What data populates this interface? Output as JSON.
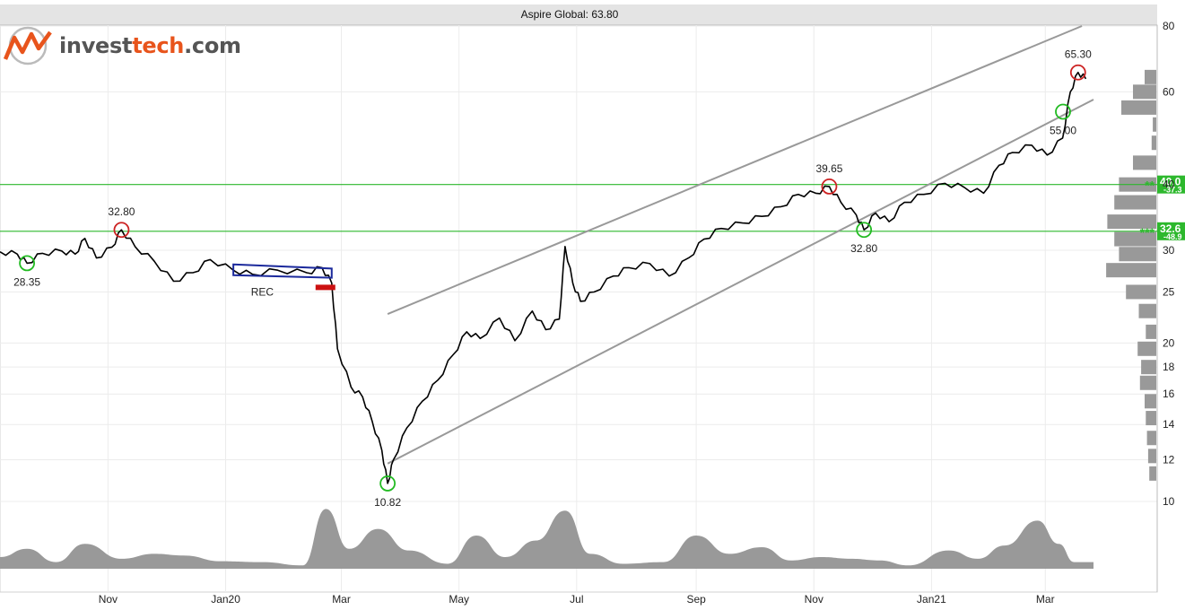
{
  "header": {
    "title": "Aspire Global: 63.80",
    "logo_text_main": "invest",
    "logo_text_accent": "tech",
    "logo_text_suffix": ".com",
    "logo_icon": "chart-zigzag-logo-icon"
  },
  "colors": {
    "price_line": "#000000",
    "trend_channel": "#999999",
    "support_resistance": "#2db82d",
    "bottom_marker": "#22bb22",
    "top_marker": "#cc2222",
    "volume": "#999999",
    "volume_profile": "#999999",
    "pattern_outline": "#1c2a9c",
    "pattern_arrow": "#cc1111",
    "title_bar": "#e4e4e4"
  },
  "chart_data": {
    "type": "line",
    "title": "Aspire Global: 63.80",
    "y_scale": "log",
    "ylim": [
      10,
      85
    ],
    "y_ticks": [
      10,
      12,
      14,
      16,
      18,
      20,
      25,
      30,
      40,
      60,
      80
    ],
    "x_range": [
      "2019-09-06",
      "2021-03-26"
    ],
    "x_ticks": [
      {
        "label": "Nov",
        "date": "2019-11-01"
      },
      {
        "label": "Jan20",
        "date": "2020-01-01"
      },
      {
        "label": "Mar",
        "date": "2020-03-01"
      },
      {
        "label": "May",
        "date": "2020-05-01"
      },
      {
        "label": "Jul",
        "date": "2020-07-01"
      },
      {
        "label": "Sep",
        "date": "2020-09-01"
      },
      {
        "label": "Nov",
        "date": "2020-11-01"
      },
      {
        "label": "Jan21",
        "date": "2021-01-01"
      },
      {
        "label": "Mar",
        "date": "2021-03-01"
      }
    ],
    "grid": true,
    "series": [
      {
        "points": [
          [
            "2019-09-06",
            29.8
          ],
          [
            "2019-09-15",
            29.5
          ],
          [
            "2019-09-20",
            28.35
          ],
          [
            "2019-09-28",
            29.6
          ],
          [
            "2019-10-08",
            29.9
          ],
          [
            "2019-10-15",
            29.5
          ],
          [
            "2019-10-20",
            31.6
          ],
          [
            "2019-10-26",
            29.0
          ],
          [
            "2019-11-03",
            30.4
          ],
          [
            "2019-11-08",
            32.8
          ],
          [
            "2019-11-15",
            30.5
          ],
          [
            "2019-11-25",
            28.6
          ],
          [
            "2019-12-05",
            26.2
          ],
          [
            "2019-12-15",
            27.2
          ],
          [
            "2019-12-24",
            28.8
          ],
          [
            "2020-01-05",
            27.5
          ],
          [
            "2020-01-15",
            27.0
          ],
          [
            "2020-01-28",
            27.5
          ],
          [
            "2020-02-12",
            27.2
          ],
          [
            "2020-02-20",
            27.8
          ],
          [
            "2020-02-25",
            26.0
          ],
          [
            "2020-02-28",
            19.5
          ],
          [
            "2020-03-06",
            16.5
          ],
          [
            "2020-03-12",
            15.8
          ],
          [
            "2020-03-17",
            14.2
          ],
          [
            "2020-03-22",
            12.5
          ],
          [
            "2020-03-25",
            10.82
          ],
          [
            "2020-03-28",
            12.0
          ],
          [
            "2020-04-04",
            13.8
          ],
          [
            "2020-04-12",
            15.5
          ],
          [
            "2020-04-20",
            17.0
          ],
          [
            "2020-04-28",
            19.0
          ],
          [
            "2020-05-05",
            21.0
          ],
          [
            "2020-05-12",
            20.4
          ],
          [
            "2020-05-22",
            22.3
          ],
          [
            "2020-05-30",
            20.2
          ],
          [
            "2020-06-08",
            23.0
          ],
          [
            "2020-06-15",
            21.2
          ],
          [
            "2020-06-22",
            22.2
          ],
          [
            "2020-06-25",
            30.5
          ],
          [
            "2020-06-29",
            26.0
          ],
          [
            "2020-07-03",
            24.0
          ],
          [
            "2020-07-10",
            25.0
          ],
          [
            "2020-07-20",
            26.8
          ],
          [
            "2020-07-28",
            27.8
          ],
          [
            "2020-08-08",
            28.3
          ],
          [
            "2020-08-18",
            26.8
          ],
          [
            "2020-08-28",
            29.0
          ],
          [
            "2020-09-05",
            31.5
          ],
          [
            "2020-09-14",
            33.0
          ],
          [
            "2020-09-25",
            33.8
          ],
          [
            "2020-10-05",
            34.8
          ],
          [
            "2020-10-15",
            36.3
          ],
          [
            "2020-10-24",
            38.3
          ],
          [
            "2020-11-02",
            38.5
          ],
          [
            "2020-11-09",
            39.65
          ],
          [
            "2020-11-15",
            37.0
          ],
          [
            "2020-11-23",
            35.0
          ],
          [
            "2020-11-27",
            32.8
          ],
          [
            "2020-12-03",
            35.3
          ],
          [
            "2020-12-10",
            34.0
          ],
          [
            "2020-12-18",
            37.0
          ],
          [
            "2020-12-28",
            38.3
          ],
          [
            "2021-01-08",
            40.2
          ],
          [
            "2021-01-18",
            39.5
          ],
          [
            "2021-01-28",
            38.5
          ],
          [
            "2021-02-05",
            43.5
          ],
          [
            "2021-02-12",
            46.0
          ],
          [
            "2021-02-22",
            47.5
          ],
          [
            "2021-03-02",
            45.5
          ],
          [
            "2021-03-10",
            49.0
          ],
          [
            "2021-03-14",
            60.0
          ],
          [
            "2021-03-18",
            65.3
          ],
          [
            "2021-03-22",
            63.5
          ]
        ]
      }
    ],
    "trend_lines": [
      {
        "name": "channel-top",
        "points": [
          [
            "2020-03-25",
            22.7
          ],
          [
            "2021-03-20",
            80.0
          ]
        ]
      },
      {
        "name": "channel-bottom",
        "points": [
          [
            "2020-03-25",
            11.8
          ],
          [
            "2021-03-26",
            58.0
          ]
        ]
      }
    ],
    "horizontal_levels": [
      {
        "value": 40.0,
        "label": "40.0",
        "pct": "-37.3",
        "stars": "**"
      },
      {
        "value": 32.6,
        "label": "32.6",
        "pct": "-48.9",
        "stars": "***"
      }
    ],
    "annotations": [
      {
        "text": "28.35",
        "type": "bottom"
      },
      {
        "text": "32.80",
        "type": "top"
      },
      {
        "text": "10.82",
        "type": "bottom"
      },
      {
        "text": "39.65",
        "type": "top"
      },
      {
        "text": "32.80",
        "type": "bottom"
      },
      {
        "text": "65.30",
        "type": "top"
      },
      {
        "text": "55.00",
        "type": "bottom"
      },
      {
        "text": "REC",
        "type": "pattern"
      }
    ],
    "volume": [
      [
        "2019-09-06",
        14
      ],
      [
        "2019-09-20",
        24
      ],
      [
        "2019-10-05",
        8
      ],
      [
        "2019-10-20",
        30
      ],
      [
        "2019-11-08",
        12
      ],
      [
        "2019-11-25",
        18
      ],
      [
        "2019-12-10",
        16
      ],
      [
        "2019-12-30",
        9
      ],
      [
        "2020-01-20",
        8
      ],
      [
        "2020-02-10",
        4
      ],
      [
        "2020-02-22",
        72
      ],
      [
        "2020-03-05",
        24
      ],
      [
        "2020-03-20",
        48
      ],
      [
        "2020-04-05",
        22
      ],
      [
        "2020-04-25",
        6
      ],
      [
        "2020-05-10",
        40
      ],
      [
        "2020-05-25",
        14
      ],
      [
        "2020-06-10",
        34
      ],
      [
        "2020-06-25",
        70
      ],
      [
        "2020-07-08",
        18
      ],
      [
        "2020-07-25",
        6
      ],
      [
        "2020-08-15",
        8
      ],
      [
        "2020-09-01",
        40
      ],
      [
        "2020-09-18",
        18
      ],
      [
        "2020-10-05",
        26
      ],
      [
        "2020-10-20",
        10
      ],
      [
        "2020-11-05",
        14
      ],
      [
        "2020-11-20",
        12
      ],
      [
        "2020-12-05",
        10
      ],
      [
        "2020-12-20",
        4
      ],
      [
        "2021-01-10",
        22
      ],
      [
        "2021-01-25",
        12
      ],
      [
        "2021-02-08",
        28
      ],
      [
        "2021-02-25",
        58
      ],
      [
        "2021-03-08",
        30
      ],
      [
        "2021-03-16",
        8
      ],
      [
        "2021-03-26",
        8
      ]
    ],
    "volume_profile": [
      [
        64,
        1
      ],
      [
        60,
        2
      ],
      [
        56,
        3
      ],
      [
        52,
        0.3
      ],
      [
        48,
        0.4
      ],
      [
        44,
        2
      ],
      [
        40,
        3.2
      ],
      [
        37,
        3.6
      ],
      [
        34,
        4.2
      ],
      [
        31.5,
        3.6
      ],
      [
        29.5,
        3.2
      ],
      [
        27.5,
        4.3
      ],
      [
        25,
        2.6
      ],
      [
        23,
        1.5
      ],
      [
        21,
        0.9
      ],
      [
        19.5,
        1.6
      ],
      [
        18,
        1.3
      ],
      [
        16.8,
        1.4
      ],
      [
        15.5,
        1.0
      ],
      [
        14.4,
        0.9
      ],
      [
        13.2,
        0.8
      ],
      [
        12.2,
        0.7
      ],
      [
        11.3,
        0.6
      ]
    ]
  }
}
